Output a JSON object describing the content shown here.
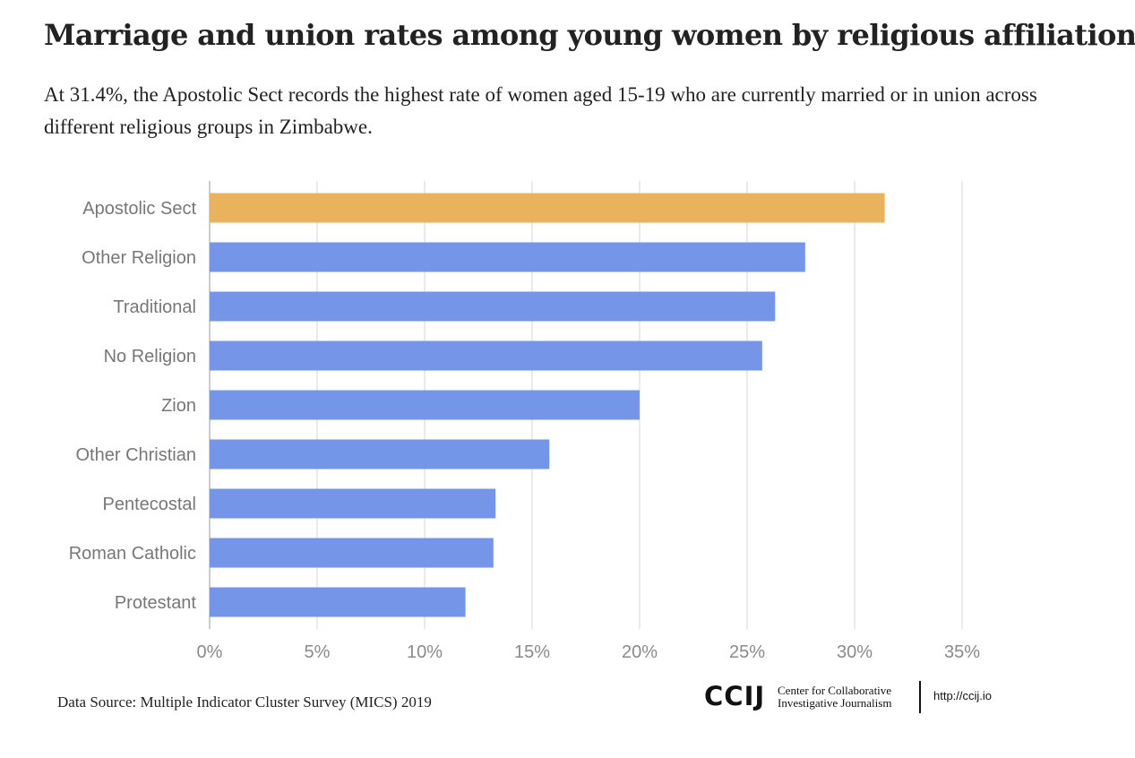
{
  "title": "Marriage and union rates among young women by religious affiliation",
  "subtitle": "At 31.4%, the Apostolic Sect records the highest rate of women aged 15-19 who are currently married or in union across different religious groups in Zimbabwe.",
  "source": "Data Source: Multiple Indicator Cluster Survey (MICS) 2019",
  "logo": {
    "mark": "CCIJ",
    "line1": "Center for Collaborative",
    "line2": "Investigative Journalism",
    "url": "http://ccij.io"
  },
  "colors": {
    "highlight": "#E8B35C",
    "bar": "#7595E8",
    "grid": "#DCDCDC",
    "axis": "#BBBBBB"
  },
  "chart_data": {
    "type": "bar",
    "orientation": "horizontal",
    "categories": [
      "Apostolic Sect",
      "Other Religion",
      "Traditional",
      "No Religion",
      "Zion",
      "Other Christian",
      "Pentecostal",
      "Roman Catholic",
      "Protestant"
    ],
    "values": [
      31.4,
      27.7,
      26.3,
      25.7,
      20.0,
      15.8,
      13.3,
      13.2,
      11.9
    ],
    "highlight_index": 0,
    "xlim": [
      0,
      35
    ],
    "xticks": [
      0,
      5,
      10,
      15,
      20,
      25,
      30,
      35
    ],
    "tick_format": "%",
    "grid": true,
    "xlabel": "",
    "ylabel": ""
  }
}
